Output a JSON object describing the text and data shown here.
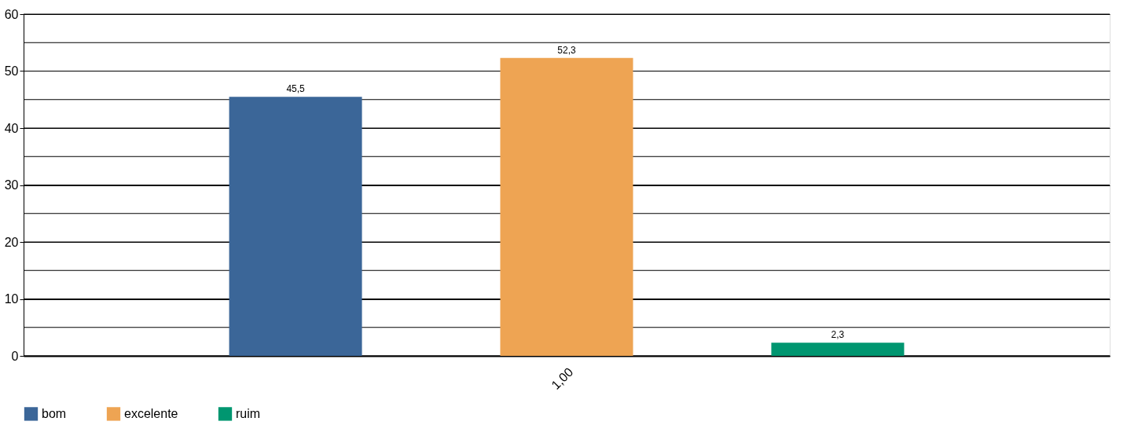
{
  "chart_data": {
    "type": "bar",
    "categories": [
      "1,00"
    ],
    "series": [
      {
        "name": "bom",
        "color": "#3b6698",
        "values": [
          45.5
        ],
        "value_labels": [
          "45,5"
        ]
      },
      {
        "name": "excelente",
        "color": "#eea453",
        "values": [
          52.3
        ],
        "value_labels": [
          "52,3"
        ]
      },
      {
        "name": "ruim",
        "color": "#009670",
        "values": [
          2.3
        ],
        "value_labels": [
          "2,3"
        ]
      }
    ],
    "ylim": [
      0,
      60
    ],
    "yticks": [
      0,
      {
        "value": 5,
        "label": null
      },
      10,
      {
        "value": 15,
        "label": null
      },
      20,
      {
        "value": 25,
        "label": null
      },
      30,
      {
        "value": 35,
        "label": null
      },
      40,
      {
        "value": 45,
        "label": null
      },
      50,
      {
        "value": 55,
        "label": null
      },
      60
    ],
    "grid": "y",
    "legend": "bottom"
  }
}
